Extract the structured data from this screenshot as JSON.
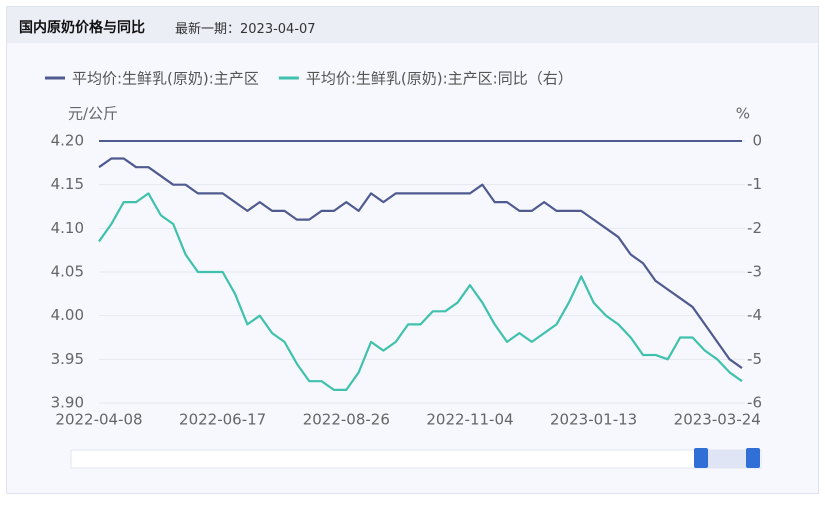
{
  "chart_data": {
    "type": "line",
    "title": "国内原奶价格与同比",
    "subtitle": "最新一期：2023-04-07",
    "ylabel": "元/公斤",
    "y2label": "%",
    "categories": [
      "2022-04-08",
      null,
      null,
      null,
      null,
      null,
      null,
      null,
      null,
      null,
      "2022-06-17",
      null,
      null,
      null,
      null,
      null,
      null,
      null,
      null,
      null,
      "2022-08-26",
      null,
      null,
      null,
      null,
      null,
      null,
      null,
      null,
      null,
      "2022-11-04",
      null,
      null,
      null,
      null,
      null,
      null,
      null,
      null,
      null,
      "2023-01-13",
      null,
      null,
      null,
      null,
      null,
      null,
      null,
      null,
      null,
      "2023-03-24",
      null,
      null
    ],
    "series": [
      {
        "name": "平均价:生鲜乳(原奶):主产区",
        "color": "#4f5a8f",
        "axis": "y",
        "values": [
          4.17,
          4.18,
          4.18,
          4.17,
          4.17,
          4.16,
          4.15,
          4.15,
          4.14,
          4.14,
          4.14,
          4.13,
          4.12,
          4.13,
          4.12,
          4.12,
          4.11,
          4.11,
          4.12,
          4.12,
          4.13,
          4.12,
          4.14,
          4.13,
          4.14,
          4.14,
          4.14,
          4.14,
          4.14,
          4.14,
          4.14,
          4.15,
          4.13,
          4.13,
          4.12,
          4.12,
          4.13,
          4.12,
          4.12,
          4.12,
          4.11,
          4.1,
          4.09,
          4.07,
          4.06,
          4.04,
          4.03,
          4.02,
          4.01,
          3.99,
          3.97,
          3.95,
          3.94
        ]
      },
      {
        "name": "平均价:生鲜乳(原奶):主产区:同比（右）",
        "color": "#3fc1ad",
        "axis": "y2",
        "values": [
          -2.3,
          -1.9,
          -1.4,
          -1.4,
          -1.2,
          -1.7,
          -1.9,
          -2.6,
          -3.0,
          -3.0,
          -3.0,
          -3.5,
          -4.2,
          -4.0,
          -4.4,
          -4.6,
          -5.1,
          -5.5,
          -5.5,
          -5.7,
          -5.7,
          -5.3,
          -4.6,
          -4.8,
          -4.6,
          -4.2,
          -4.2,
          -3.9,
          -3.9,
          -3.7,
          -3.3,
          -3.7,
          -4.2,
          -4.6,
          -4.4,
          -4.6,
          -4.4,
          -4.2,
          -3.7,
          -3.1,
          -3.7,
          -4.0,
          -4.2,
          -4.5,
          -4.9,
          -4.9,
          -5.0,
          -4.5,
          -4.5,
          -4.8,
          -5.0,
          -5.3,
          -5.5
        ]
      }
    ],
    "ylim": [
      3.9,
      4.2
    ],
    "yticks": [
      {
        "value": 3.9,
        "label": "3.90"
      },
      {
        "value": 3.95,
        "label": "3.95"
      },
      {
        "value": 4.0,
        "label": "4.00"
      },
      {
        "value": 4.05,
        "label": "4.05"
      },
      {
        "value": 4.1,
        "label": "4.10"
      },
      {
        "value": 4.15,
        "label": "4.15"
      },
      {
        "value": 4.2,
        "label": "4.20"
      }
    ],
    "y2lim": [
      -6,
      0
    ],
    "y2ticks": [
      -6,
      -5,
      -4,
      -3,
      -2,
      -1,
      0
    ],
    "grid": true,
    "legend": "top"
  }
}
